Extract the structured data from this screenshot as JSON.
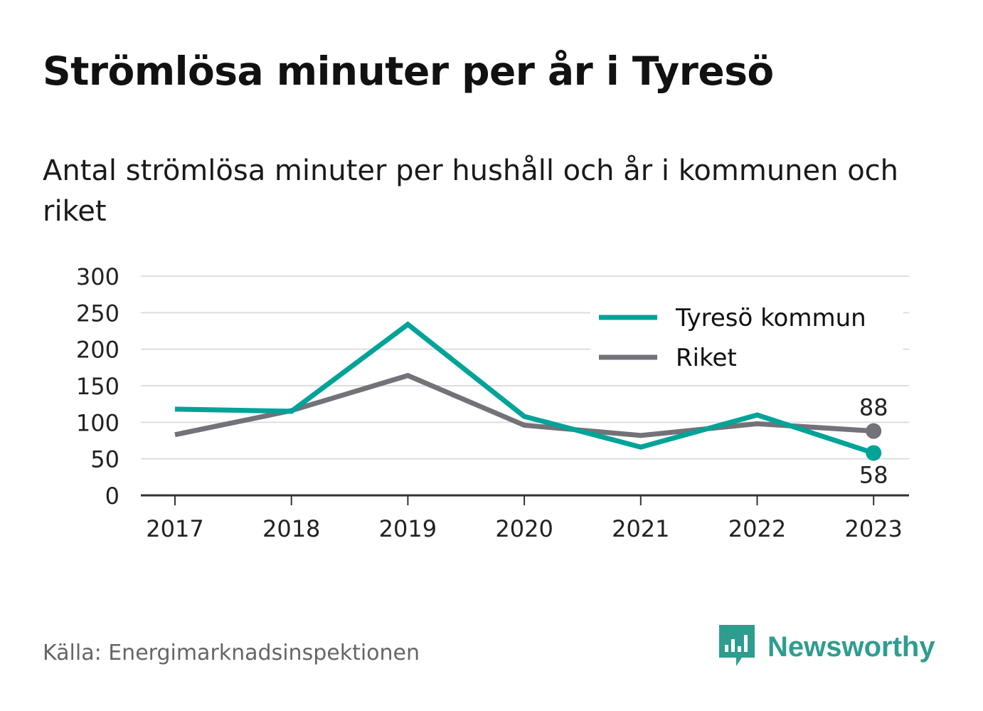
{
  "header": {
    "title": "Strömlösa minuter per år i Tyresö",
    "subtitle": "Antal strömlösa minuter per hushåll och år i kommunen och riket"
  },
  "footer": {
    "source": "Källa: Energimarknadsinspektionen",
    "brand": "Newsworthy",
    "brand_icon": "bar-chart-speech-bubble-icon",
    "brand_color": "#2e9d8f"
  },
  "chart_data": {
    "type": "line",
    "x": [
      "2017",
      "2018",
      "2019",
      "2020",
      "2021",
      "2022",
      "2023"
    ],
    "ylim": [
      0,
      300
    ],
    "yticks": [
      0,
      50,
      100,
      150,
      200,
      250,
      300
    ],
    "grid": true,
    "legend_position": "top-right",
    "series": [
      {
        "name": "Tyresö kommun",
        "color": "#00a398",
        "values": [
          118,
          115,
          234,
          108,
          66,
          110,
          58
        ],
        "end_label": "58"
      },
      {
        "name": "Riket",
        "color": "#737279",
        "values": [
          83,
          116,
          164,
          96,
          82,
          98,
          88
        ],
        "end_label": "88"
      }
    ]
  }
}
